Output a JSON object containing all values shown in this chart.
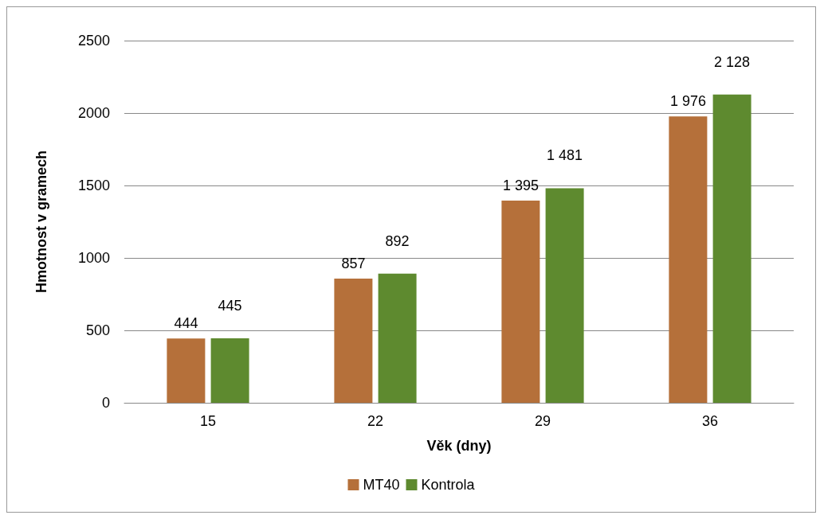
{
  "chart_data": {
    "type": "bar",
    "xlabel": "Věk (dny)",
    "ylabel": "Hmotnost v gramech",
    "categories": [
      "15",
      "22",
      "29",
      "36"
    ],
    "series": [
      {
        "name": "MT40",
        "color": "#b5703a",
        "values": [
          444,
          857,
          1395,
          1976
        ],
        "value_labels": [
          "444",
          "857",
          "1 395",
          "1 976"
        ]
      },
      {
        "name": "Kontrola",
        "color": "#5e8a2f",
        "values": [
          445,
          892,
          1481,
          2128
        ],
        "value_labels": [
          "445",
          "892",
          "1 481",
          "2 128"
        ]
      }
    ],
    "ylim": [
      0,
      2500
    ],
    "yticks": [
      0,
      500,
      1000,
      1500,
      2000,
      2500
    ],
    "grid": "y",
    "legend": "bottom"
  }
}
